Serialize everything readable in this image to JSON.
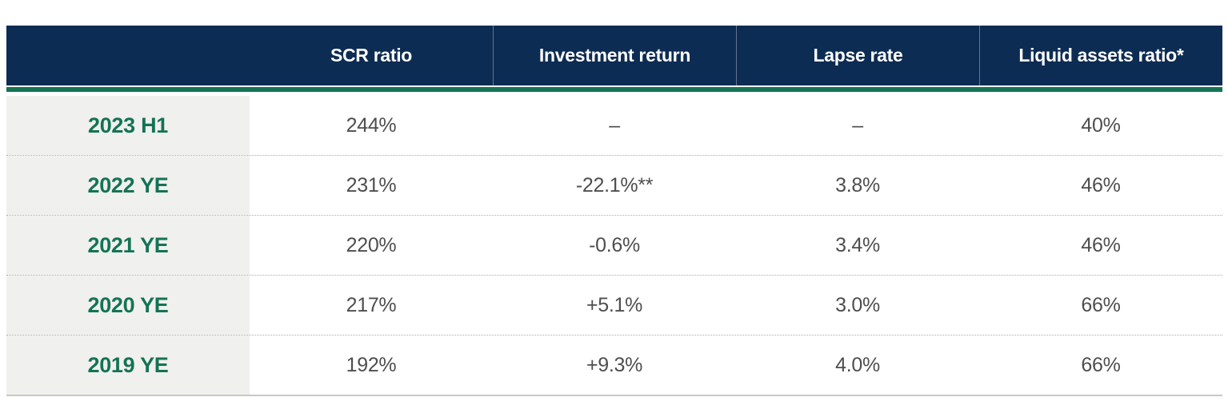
{
  "chart_data": {
    "type": "table",
    "columns": [
      "",
      "SCR ratio",
      "Investment return",
      "Lapse rate",
      "Liquid assets ratio*"
    ],
    "rows": [
      {
        "label": "2023 H1",
        "cells": [
          "244%",
          "–",
          "–",
          "40%"
        ]
      },
      {
        "label": "2022 YE",
        "cells": [
          "231%",
          "-22.1%**",
          "3.8%",
          "46%"
        ]
      },
      {
        "label": "2021 YE",
        "cells": [
          "220%",
          "-0.6%",
          "3.4%",
          "46%"
        ]
      },
      {
        "label": "2020 YE",
        "cells": [
          "217%",
          "+5.1%",
          "3.0%",
          "66%"
        ]
      },
      {
        "label": "2019 YE",
        "cells": [
          "192%",
          "+9.3%",
          "4.0%",
          "66%"
        ]
      }
    ],
    "layout_hints": {
      "first_column_role": "period-labels",
      "row_separator": "dotted",
      "bottom_border": "solid"
    }
  },
  "colors": {
    "header_bg": "#0d2c53",
    "header_text": "#ffffff",
    "accent_green": "#147355",
    "row_label_text": "#147355",
    "row_label_bg": "#f0f0ee",
    "cell_text": "#4e4e4e",
    "dotted_separator": "#ababab",
    "bottom_border": "#c8c8c8"
  }
}
